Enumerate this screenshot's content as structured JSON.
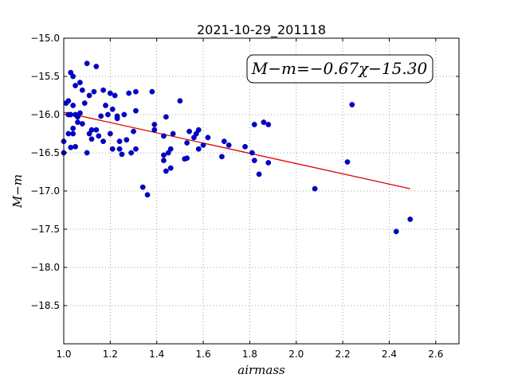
{
  "chart_data": {
    "type": "scatter",
    "title": "2021-10-29_201118",
    "xlabel": "airmass",
    "ylabel": "M−m",
    "xlim": [
      1.0,
      2.7
    ],
    "ylim": [
      -19.0,
      -15.0
    ],
    "y_inverted": true,
    "grid": true,
    "xticks": [
      1.0,
      1.2,
      1.4,
      1.6,
      1.8,
      2.0,
      2.2,
      2.4,
      2.6
    ],
    "xtick_labels": [
      "1.0",
      "1.2",
      "1.4",
      "1.6",
      "1.8",
      "2.0",
      "2.2",
      "2.4",
      "2.6"
    ],
    "yticks": [
      -15.0,
      -15.5,
      -16.0,
      -16.5,
      -17.0,
      -17.5,
      -18.0,
      -18.5
    ],
    "ytick_labels": [
      "−15.0",
      "−15.5",
      "−16.0",
      "−16.5",
      "−17.0",
      "−17.5",
      "−18.0",
      "−18.5"
    ],
    "annotation": "M−m=−0.67χ−15.30",
    "colors": {
      "points": "#0000cc",
      "fit": "#dd0000",
      "grid": "#888888"
    },
    "fit_line": {
      "x": [
        1.0,
        2.49
      ],
      "y": [
        -15.97,
        -16.97
      ]
    },
    "points": [
      [
        1.0,
        -16.35
      ],
      [
        1.0,
        -16.5
      ],
      [
        1.01,
        -15.85
      ],
      [
        1.02,
        -15.82
      ],
      [
        1.02,
        -16.0
      ],
      [
        1.02,
        -16.25
      ],
      [
        1.03,
        -15.45
      ],
      [
        1.03,
        -16.0
      ],
      [
        1.03,
        -16.43
      ],
      [
        1.04,
        -15.5
      ],
      [
        1.04,
        -15.88
      ],
      [
        1.04,
        -16.18
      ],
      [
        1.04,
        -16.25
      ],
      [
        1.05,
        -15.62
      ],
      [
        1.05,
        -16.0
      ],
      [
        1.05,
        -16.42
      ],
      [
        1.06,
        -16.03
      ],
      [
        1.06,
        -16.1
      ],
      [
        1.07,
        -15.58
      ],
      [
        1.07,
        -15.98
      ],
      [
        1.08,
        -15.68
      ],
      [
        1.08,
        -16.12
      ],
      [
        1.09,
        -15.85
      ],
      [
        1.1,
        -15.33
      ],
      [
        1.1,
        -16.5
      ],
      [
        1.11,
        -15.75
      ],
      [
        1.11,
        -16.25
      ],
      [
        1.12,
        -16.2
      ],
      [
        1.12,
        -16.32
      ],
      [
        1.13,
        -15.7
      ],
      [
        1.14,
        -15.37
      ],
      [
        1.14,
        -16.2
      ],
      [
        1.15,
        -16.28
      ],
      [
        1.16,
        -16.02
      ],
      [
        1.17,
        -15.68
      ],
      [
        1.17,
        -16.35
      ],
      [
        1.18,
        -15.88
      ],
      [
        1.19,
        -16.0
      ],
      [
        1.2,
        -15.72
      ],
      [
        1.2,
        -16.25
      ],
      [
        1.21,
        -15.93
      ],
      [
        1.21,
        -16.45
      ],
      [
        1.22,
        -15.75
      ],
      [
        1.23,
        -16.02
      ],
      [
        1.23,
        -16.05
      ],
      [
        1.24,
        -16.45
      ],
      [
        1.24,
        -16.35
      ],
      [
        1.25,
        -16.52
      ],
      [
        1.26,
        -16.0
      ],
      [
        1.27,
        -16.33
      ],
      [
        1.28,
        -15.72
      ],
      [
        1.29,
        -16.5
      ],
      [
        1.3,
        -16.22
      ],
      [
        1.31,
        -15.95
      ],
      [
        1.31,
        -15.7
      ],
      [
        1.31,
        -16.45
      ],
      [
        1.34,
        -16.95
      ],
      [
        1.36,
        -17.05
      ],
      [
        1.38,
        -15.7
      ],
      [
        1.39,
        -16.13
      ],
      [
        1.39,
        -16.2
      ],
      [
        1.43,
        -16.28
      ],
      [
        1.43,
        -16.53
      ],
      [
        1.43,
        -16.6
      ],
      [
        1.44,
        -16.03
      ],
      [
        1.44,
        -16.74
      ],
      [
        1.45,
        -16.5
      ],
      [
        1.46,
        -16.45
      ],
      [
        1.46,
        -16.7
      ],
      [
        1.47,
        -16.25
      ],
      [
        1.5,
        -15.82
      ],
      [
        1.52,
        -16.58
      ],
      [
        1.53,
        -16.57
      ],
      [
        1.53,
        -16.37
      ],
      [
        1.54,
        -16.22
      ],
      [
        1.56,
        -16.3
      ],
      [
        1.57,
        -16.25
      ],
      [
        1.58,
        -16.2
      ],
      [
        1.58,
        -16.45
      ],
      [
        1.6,
        -16.4
      ],
      [
        1.62,
        -16.3
      ],
      [
        1.68,
        -16.55
      ],
      [
        1.69,
        -16.35
      ],
      [
        1.71,
        -16.4
      ],
      [
        1.78,
        -16.42
      ],
      [
        1.81,
        -16.5
      ],
      [
        1.82,
        -16.6
      ],
      [
        1.82,
        -16.13
      ],
      [
        1.84,
        -16.78
      ],
      [
        1.86,
        -16.1
      ],
      [
        1.88,
        -16.13
      ],
      [
        1.88,
        -16.63
      ],
      [
        2.08,
        -16.97
      ],
      [
        2.22,
        -16.62
      ],
      [
        2.24,
        -15.87
      ],
      [
        2.43,
        -17.53
      ],
      [
        2.49,
        -17.37
      ]
    ]
  }
}
